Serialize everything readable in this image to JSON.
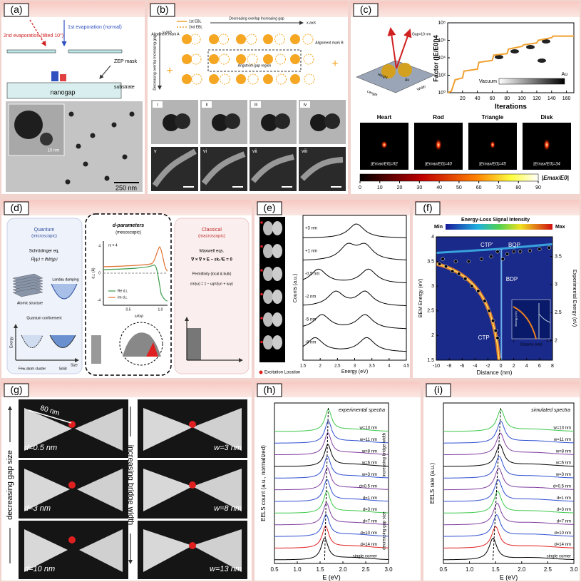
{
  "panels": {
    "a": {
      "label": "(a)",
      "evap2": "2nd evaporation (tilted 10°)",
      "evap1": "1st evaporation (normal)",
      "mask": "ZEP mask",
      "gap": "nanogap",
      "substrate": "substrate",
      "inset_scale": "10 nm",
      "scale": "250 nm"
    },
    "b": {
      "label": "(b)",
      "ebl1": "1st EBL",
      "ebl2": "2nd EBL",
      "x_arrow": "Decreasing overlap Increasing gap",
      "x_axis": "x-axis",
      "y_arrow": "Decreasing overlap Increasing gap",
      "y_axis": "y-axis",
      "mark_a": "Alignment mark A",
      "mark_b": "Alignment mark B",
      "region": "Angstrom-gap region",
      "numerals": [
        "i",
        "ii",
        "iii",
        "iv",
        "v",
        "vi",
        "vii",
        "viii"
      ]
    },
    "c": {
      "label": "(c)",
      "inset": {
        "gap": "Gap=10 nm",
        "metal": "Au",
        "length": "Length",
        "width": "Width",
        "height": "Height"
      },
      "chart": {
        "type": "line",
        "ylabel": "Factor (|E/E0|)4",
        "xlabel": "Iterations",
        "x": [
          0,
          5,
          10,
          20,
          22,
          40,
          42,
          60,
          62,
          80,
          82,
          100,
          102,
          120,
          122,
          140,
          142,
          170
        ],
        "y": [
          1,
          1.5,
          30,
          50,
          300,
          500,
          3000,
          5000,
          20000,
          30000,
          100000,
          200000,
          300000,
          500000,
          1000000,
          2000000,
          3000000,
          3000000
        ],
        "xlim": [
          0,
          170
        ],
        "xticks": [
          20,
          40,
          60,
          80,
          100,
          120,
          140,
          160
        ],
        "ylim": [
          1,
          100000000
        ],
        "log_y": true,
        "yticks": [
          {
            "value": 1,
            "label": "10⁰"
          },
          {
            "value": 100,
            "label": "10²"
          },
          {
            "value": 10000,
            "label": "10⁴"
          },
          {
            "value": 1000000,
            "label": "10⁶"
          },
          {
            "value": 100000000,
            "label": "10⁸"
          }
        ],
        "color": "#f0a030",
        "legend": [
          "Vacuum",
          "Au"
        ]
      },
      "shapes": [
        {
          "name": "Heart",
          "enhancement": "|Emax/E0|=92"
        },
        {
          "name": "Rod",
          "enhancement": "|Emax/E0|=40"
        },
        {
          "name": "Triangle",
          "enhancement": "|Emax/E0|=45"
        },
        {
          "name": "Disk",
          "enhancement": "|Emax/E0|=34"
        }
      ],
      "colorbar": {
        "ticks": [
          0,
          10,
          20,
          30,
          40,
          50,
          60,
          70,
          80,
          90
        ],
        "label": "|Emax/E0|"
      }
    },
    "d": {
      "label": "(d)",
      "quantum": {
        "title": "Quantum",
        "sub": "(microscopic)",
        "eq": "Schrödinger eq.",
        "eq_form": "Ĥ|ψ⟩ = iħ∂t|ψ⟩",
        "atomic": "Atomic structure",
        "landau": "Landau damping",
        "confinement": "Quantum confinement",
        "energy": "Energy",
        "size": "Size",
        "cluster": "Few-atom cluster",
        "solid": "Solid"
      },
      "dparam": {
        "title": "d-parameters",
        "sub": "(mesoscopic)",
        "rs": "rs = 4",
        "re": "Re d⊥",
        "im": "Im d⊥",
        "xlabel": "ω/ωp",
        "ylabel": "d⊥ (Å)",
        "yticks": [
          "4",
          "0",
          "-4"
        ],
        "xticks": [
          "0.5",
          "1.0"
        ]
      },
      "classical": {
        "title": "Classical",
        "sub": "(macroscopic)",
        "eq": "Maxwell eqs.",
        "eq_form": "∇ × ∇ × E − εk₀²E = 0",
        "perm": "Permittivity (local & bulk)",
        "perm_form": "εm(ω) = 1 − ωp²/(ω² + iωγ)"
      }
    },
    "e": {
      "label": "(e)",
      "ylabel": "Counts (a.u.)",
      "xlabel": "Energy (eV)",
      "xlim": [
        1.5,
        4.5
      ],
      "xticks": [
        1.5,
        2,
        2.5,
        3,
        3.5,
        4,
        4.5
      ],
      "legend": "Excitation Location",
      "traces": [
        {
          "offset": "+3 nm",
          "peaks": [
            3.05
          ]
        },
        {
          "offset": "+1 nm",
          "peaks": [
            2.8,
            3.3
          ]
        },
        {
          "offset": "-0.5 nm",
          "peaks": [
            1.95,
            3.4
          ]
        },
        {
          "offset": "-2 nm",
          "peaks": [
            2.45,
            3.3
          ]
        },
        {
          "offset": "-5 nm",
          "peaks": [
            2.05,
            3.3
          ]
        },
        {
          "offset": "-8 nm",
          "peaks": [
            1.85,
            3.35
          ]
        }
      ]
    },
    "f": {
      "label": "(f)",
      "colorbar": {
        "title": "Energy-Loss Signal Intensity",
        "min": "Min",
        "max": "Max"
      },
      "modes": [
        "CTP'",
        "BQP",
        "BDP",
        "CTP"
      ],
      "ylabel": "BEM Energy (eV)",
      "y2label": "Experimental Energy (eV)",
      "xlabel": "Distance (nm)",
      "xlim": [
        -10,
        8
      ],
      "xticks": [
        -10,
        -8,
        -6,
        -4,
        -2,
        0,
        2,
        4,
        6,
        8
      ],
      "ylim": [
        1.5,
        4
      ],
      "yticks": [
        1.5,
        2,
        2.5,
        3,
        3.5,
        4
      ],
      "y2lim": [
        1.65,
        3.85
      ],
      "y2ticks": [
        2,
        2.5,
        3,
        3.5
      ],
      "points": {
        "x": [
          -9.5,
          -8.5,
          -7.5,
          -6.5,
          -5.5,
          -4.5,
          -3.5,
          -2.5,
          -1.8,
          -1.2,
          -0.8,
          -0.5,
          -9,
          -7,
          -5,
          -3,
          -1.5,
          -0.5,
          0.3,
          1,
          2,
          3,
          4.5,
          6,
          7.5
        ],
        "y": [
          3.45,
          3.4,
          3.3,
          3.25,
          3.15,
          3.0,
          2.9,
          2.7,
          2.5,
          2.3,
          2.1,
          1.95,
          3.55,
          3.5,
          3.5,
          3.55,
          3.6,
          3.7,
          3.55,
          3.65,
          3.7,
          3.7,
          3.72,
          3.75,
          3.78
        ]
      },
      "inset": {
        "ylabel": "Energy (eV)",
        "xlabel": "Distance (nm)",
        "xticks": [
          -1,
          0.7
        ]
      }
    },
    "g": {
      "label": "(g)",
      "size": "80 nm",
      "gap_axis": "decreasing gap size",
      "bridge_axis": "increasing bridge width",
      "tiles": [
        "d=0.5 nm",
        "w=3 nm",
        "d=3 nm",
        "w=8 nm",
        "d=10 nm",
        "w=13 nm"
      ]
    },
    "h": {
      "label": "(h)",
      "title": "experimental spectra",
      "ylabel": "EELS count (a.u., normalized)",
      "xlabel": "E (eV)",
      "xlim": [
        0.5,
        3.0
      ],
      "xticks": [
        0.5,
        {
          "value": 1,
          "label": "1.0"
        },
        1.5,
        {
          "value": 2,
          "label": "2.0"
        },
        2.5,
        {
          "value": 3,
          "label": "3.0"
        }
      ],
      "bridge": "increasing bridge width",
      "gap": "decreasing gap size",
      "series": [
        {
          "name": "w=13 nm",
          "color": "#3cc84a",
          "peak": 1.68
        },
        {
          "name": "w=11 nm",
          "color": "#3050d0",
          "peak": 1.68
        },
        {
          "name": "w=8 nm",
          "color": "#8040a0",
          "peak": 1.67
        },
        {
          "name": "w=6 nm",
          "color": "#000000",
          "peak": 1.67
        },
        {
          "name": "w=3 nm",
          "color": "#3050d0",
          "peak": 1.66
        },
        {
          "name": "d=0.5 nm",
          "color": "#8040a0",
          "peak": 1.66
        },
        {
          "name": "d=1 nm",
          "color": "#3050d0",
          "peak": 1.65
        },
        {
          "name": "d=3 nm",
          "color": "#3cc84a",
          "peak": 1.65
        },
        {
          "name": "d=7 nm",
          "color": "#8040a0",
          "peak": 1.64
        },
        {
          "name": "d=10 nm",
          "color": "#3050d0",
          "peak": 1.63
        },
        {
          "name": "d=14 nm",
          "color": "#e02020",
          "peak": 1.62
        },
        {
          "name": "single corner",
          "color": "#000000",
          "peak": 1.6
        }
      ]
    },
    "i": {
      "label": "(i)",
      "title": "simulated spectra",
      "ylabel": "EELS rate (a.u.)",
      "xlabel": "E (eV)",
      "xlim": [
        0.5,
        3.0
      ],
      "xticks": [
        0.5,
        {
          "value": 1,
          "label": "1.0"
        },
        1.5,
        {
          "value": 2,
          "label": "2.0"
        },
        2.5,
        {
          "value": 3,
          "label": "3.0"
        }
      ],
      "series": [
        {
          "name": "w=13 nm",
          "color": "#3cc84a",
          "peak": 1.6
        },
        {
          "name": "w=11 nm",
          "color": "#3050d0",
          "peak": 1.6
        },
        {
          "name": "w=8 nm",
          "color": "#8040a0",
          "peak": 1.59
        },
        {
          "name": "w=6 nm",
          "color": "#000000",
          "peak": 1.58
        },
        {
          "name": "w=3 nm",
          "color": "#3050d0",
          "peak": 1.57
        },
        {
          "name": "d=0.5 nm",
          "color": "#8040a0",
          "peak": 1.56
        },
        {
          "name": "d=1 nm",
          "color": "#3050d0",
          "peak": 1.55
        },
        {
          "name": "d=3 nm",
          "color": "#3cc84a",
          "peak": 1.54
        },
        {
          "name": "d=7 nm",
          "color": "#8040a0",
          "peak": 1.53
        },
        {
          "name": "d=10 nm",
          "color": "#3050d0",
          "peak": 1.52
        },
        {
          "name": "d=14 nm",
          "color": "#e02020",
          "peak": 1.5
        },
        {
          "name": "single corner",
          "color": "#000000",
          "peak": 1.45
        }
      ]
    }
  }
}
